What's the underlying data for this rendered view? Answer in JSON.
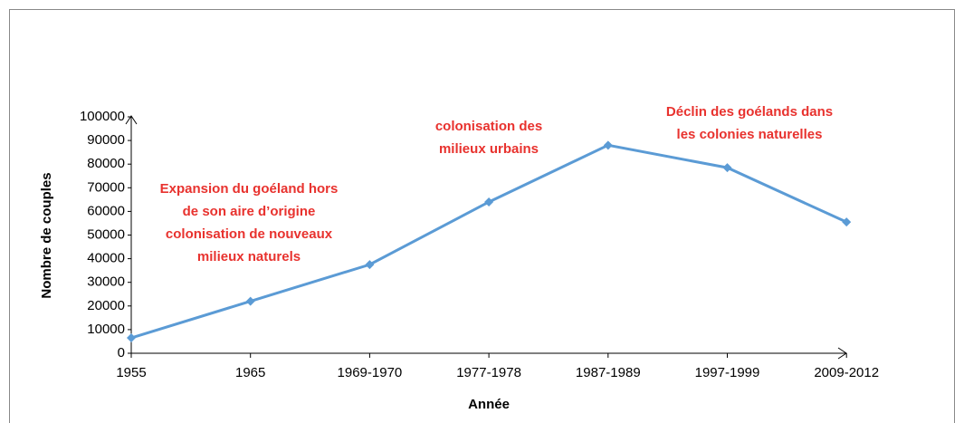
{
  "chart_data": {
    "type": "line",
    "x_label": "Année",
    "y_label": "Nombre de couples",
    "categories": [
      "1955",
      "1965",
      "1969-1970",
      "1977-1978",
      "1987-1989",
      "1997-1999",
      "2009-2012"
    ],
    "series": [
      {
        "name": "Nombre de couples",
        "color": "#5b9bd5",
        "values": [
          6500,
          22000,
          37500,
          64000,
          88000,
          78500,
          55500
        ]
      }
    ],
    "ylim": [
      0,
      100000
    ],
    "yticks": [
      0,
      10000,
      20000,
      30000,
      40000,
      50000,
      60000,
      70000,
      80000,
      90000,
      100000
    ],
    "annotations": [
      {
        "lines": [
          "Expansion du goéland hors",
          "de son aire d’origine",
          "colonisation de nouveaux",
          "milieux naturels"
        ]
      },
      {
        "lines": [
          "colonisation des",
          "milieux urbains"
        ]
      },
      {
        "lines": [
          "Déclin des goélands dans",
          "les colonies naturelles"
        ]
      }
    ]
  }
}
